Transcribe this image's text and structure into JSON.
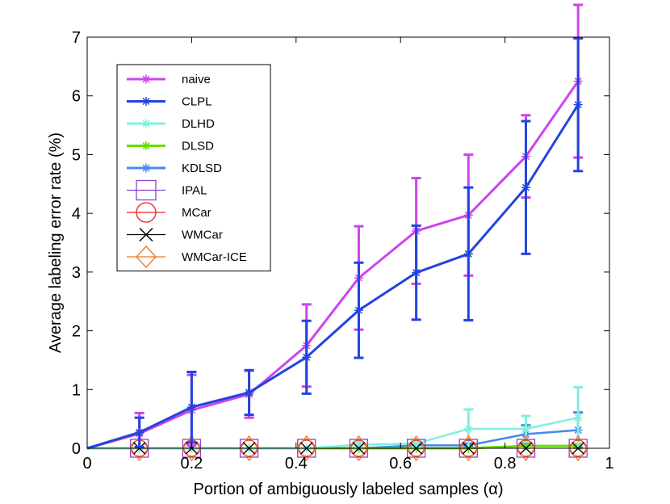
{
  "chart_data": {
    "type": "line",
    "title": "",
    "xlabel": "Portion of ambiguously labeled samples (α)",
    "ylabel": "Average labeling error rate (%)",
    "xlim": [
      0,
      1
    ],
    "ylim": [
      0,
      7
    ],
    "x_ticks": [
      0,
      0.2,
      0.4,
      0.6,
      0.8,
      1
    ],
    "x_tick_labels": [
      "0",
      "0.2",
      "0.4",
      "0.6",
      "0.8",
      "1"
    ],
    "y_ticks": [
      0,
      1,
      2,
      3,
      4,
      5,
      6,
      7
    ],
    "y_tick_labels": [
      "0",
      "1",
      "2",
      "3",
      "4",
      "5",
      "6",
      "7"
    ],
    "grid": false,
    "legend_position": "top-left",
    "series": [
      {
        "name": "naive",
        "color": "#cc44ee",
        "marker": "asterisk",
        "x": [
          0,
          0.1,
          0.2,
          0.31,
          0.42,
          0.52,
          0.63,
          0.73,
          0.84,
          0.94
        ],
        "y": [
          0,
          0.25,
          0.65,
          0.92,
          1.75,
          2.9,
          3.7,
          3.97,
          4.97,
          6.25
        ],
        "err": [
          0,
          0.35,
          0.6,
          0.4,
          0.7,
          0.88,
          0.9,
          1.03,
          0.7,
          1.3
        ]
      },
      {
        "name": "CLPL",
        "color": "#2244dd",
        "marker": "asterisk",
        "x": [
          0,
          0.1,
          0.2,
          0.31,
          0.42,
          0.52,
          0.63,
          0.73,
          0.84,
          0.94
        ],
        "y": [
          0,
          0.27,
          0.7,
          0.95,
          1.55,
          2.35,
          2.99,
          3.31,
          4.44,
          5.85
        ],
        "err": [
          0,
          0.25,
          0.6,
          0.38,
          0.62,
          0.81,
          0.8,
          1.13,
          1.13,
          1.13
        ]
      },
      {
        "name": "DLHD",
        "color": "#7ff0dd",
        "marker": "asterisk",
        "x": [
          0,
          0.1,
          0.2,
          0.31,
          0.42,
          0.52,
          0.63,
          0.73,
          0.84,
          0.94
        ],
        "y": [
          0,
          0.0,
          0.0,
          0.0,
          0.0,
          0.06,
          0.08,
          0.33,
          0.33,
          0.52
        ],
        "err": [
          0,
          0,
          0,
          0,
          0,
          0.05,
          0.06,
          0.33,
          0.22,
          0.52
        ]
      },
      {
        "name": "DLSD",
        "color": "#66dd00",
        "marker": "asterisk",
        "x": [
          0,
          0.1,
          0.2,
          0.31,
          0.42,
          0.52,
          0.63,
          0.73,
          0.84,
          0.94
        ],
        "y": [
          0,
          0.0,
          0.0,
          0.0,
          0.0,
          0.0,
          0.0,
          0.0,
          0.04,
          0.04
        ],
        "err": [
          0,
          0,
          0,
          0,
          0,
          0,
          0,
          0,
          0,
          0
        ]
      },
      {
        "name": "KDLSD",
        "color": "#4488ee",
        "marker": "asterisk",
        "x": [
          0,
          0.1,
          0.2,
          0.31,
          0.42,
          0.52,
          0.63,
          0.73,
          0.84,
          0.94
        ],
        "y": [
          0,
          0.0,
          0.0,
          0.0,
          0.0,
          0.0,
          0.05,
          0.05,
          0.24,
          0.31
        ],
        "err": [
          0,
          0,
          0,
          0,
          0,
          0,
          0.03,
          0.03,
          0.15,
          0.3
        ]
      },
      {
        "name": "IPAL",
        "color": "#8844cc",
        "marker": "square",
        "x": [
          0.1,
          0.2,
          0.31,
          0.42,
          0.52,
          0.63,
          0.73,
          0.84,
          0.94
        ],
        "y": [
          0,
          0,
          0,
          0,
          0,
          0,
          0,
          0,
          0
        ]
      },
      {
        "name": "MCar",
        "color": "#ee2222",
        "marker": "circle",
        "x": [
          0.1,
          0.2,
          0.31,
          0.42,
          0.52,
          0.63,
          0.73,
          0.84,
          0.94
        ],
        "y": [
          0,
          0,
          0,
          0,
          0,
          0,
          0,
          0,
          0
        ]
      },
      {
        "name": "WMCar",
        "color": "#000000",
        "marker": "cross",
        "x": [
          0.1,
          0.2,
          0.31,
          0.42,
          0.52,
          0.63,
          0.73,
          0.84,
          0.94
        ],
        "y": [
          0,
          0,
          0,
          0,
          0,
          0,
          0,
          0,
          0
        ]
      },
      {
        "name": "WMCar-ICE",
        "color": "#ee7722",
        "marker": "diamond",
        "x": [
          0.1,
          0.2,
          0.31,
          0.42,
          0.52,
          0.63,
          0.73,
          0.84,
          0.94
        ],
        "y": [
          0,
          0,
          0,
          0,
          0,
          0,
          0,
          0,
          0
        ]
      }
    ]
  }
}
